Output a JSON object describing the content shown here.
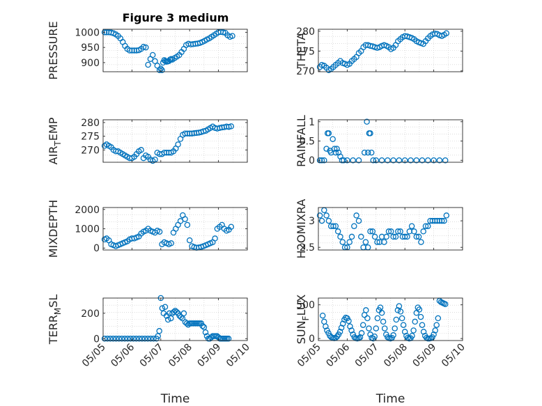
{
  "figure_title": "Figure 3 medium",
  "colors": {
    "marker": "#0072bd",
    "axis": "#262626",
    "grid": "#c8c8c8"
  },
  "chart_data": [
    {
      "id": "pressure",
      "type": "scatter",
      "ylabel": "PRESSURE",
      "xlabel": "",
      "xlim": [
        0,
        5
      ],
      "ylim": [
        870,
        1010
      ],
      "yticks": [
        900,
        950,
        1000
      ],
      "xticks": [],
      "grid": true,
      "x": [
        0.05,
        0.12,
        0.2,
        0.28,
        0.36,
        0.44,
        0.52,
        0.6,
        0.68,
        0.76,
        0.84,
        0.92,
        1.0,
        1.08,
        1.16,
        1.24,
        1.32,
        1.4,
        1.48,
        1.56,
        1.64,
        1.72,
        1.8,
        1.88,
        1.96,
        2.0,
        2.04,
        2.08,
        2.12,
        2.16,
        2.2,
        2.24,
        2.28,
        2.32,
        2.36,
        2.4,
        2.48,
        2.56,
        2.64,
        2.72,
        2.8,
        2.88,
        2.96,
        3.04,
        3.12,
        3.2,
        3.28,
        3.36,
        3.44,
        3.52,
        3.6,
        3.68,
        3.76,
        3.84,
        3.92,
        4.0,
        4.08,
        4.16,
        4.24,
        4.32,
        4.4,
        4.48
      ],
      "y": [
        1000,
        1000,
        1000,
        999,
        997,
        993,
        988,
        980,
        968,
        955,
        945,
        940,
        940,
        940,
        940,
        941,
        945,
        952,
        950,
        893,
        912,
        925,
        905,
        890,
        875,
        880,
        875,
        900,
        908,
        905,
        903,
        904,
        905,
        910,
        912,
        910,
        915,
        920,
        925,
        935,
        945,
        958,
        962,
        960,
        961,
        962,
        963,
        965,
        968,
        972,
        976,
        980,
        985,
        990,
        995,
        1000,
        1001,
        1000,
        998,
        990,
        985,
        988
      ]
    },
    {
      "id": "theta",
      "type": "scatter",
      "ylabel": "THETA",
      "xlabel": "",
      "xlim": [
        0,
        5
      ],
      "ylim": [
        269.8,
        280.5
      ],
      "yticks": [
        270,
        275,
        280
      ],
      "xticks": [],
      "grid": true,
      "x": [
        0.05,
        0.12,
        0.2,
        0.28,
        0.36,
        0.44,
        0.52,
        0.6,
        0.68,
        0.76,
        0.84,
        0.92,
        1.0,
        1.08,
        1.16,
        1.24,
        1.32,
        1.4,
        1.48,
        1.56,
        1.64,
        1.72,
        1.8,
        1.88,
        1.96,
        2.04,
        2.12,
        2.2,
        2.28,
        2.36,
        2.44,
        2.52,
        2.6,
        2.68,
        2.76,
        2.84,
        2.92,
        3.0,
        3.08,
        3.16,
        3.24,
        3.32,
        3.4,
        3.48,
        3.56,
        3.64,
        3.72,
        3.8,
        3.88,
        3.96,
        4.04,
        4.12,
        4.2,
        4.28,
        4.36,
        4.44
      ],
      "y": [
        271,
        271.5,
        271.3,
        270.8,
        270.2,
        270.5,
        271,
        271.5,
        272,
        272.5,
        272,
        271.8,
        271.5,
        271.8,
        272.5,
        273,
        273.5,
        274.5,
        275,
        276,
        276.5,
        276.5,
        276.3,
        276.2,
        276,
        275.8,
        276,
        276.3,
        276.5,
        276.3,
        276,
        275.5,
        275.8,
        276.5,
        277.5,
        278,
        278.5,
        278.8,
        278.7,
        278.5,
        278.3,
        278,
        277.5,
        277.2,
        277,
        276.8,
        277.5,
        278.2,
        278.8,
        279.2,
        279.4,
        279.3,
        279.0,
        278.8,
        279.1,
        279.5
      ]
    },
    {
      "id": "air_temp",
      "type": "scatter",
      "ylabel": "AIR_TEMP",
      "xlabel": "",
      "xlim": [
        0,
        5
      ],
      "ylim": [
        265.5,
        281
      ],
      "yticks": [
        270,
        275,
        280
      ],
      "xticks": [],
      "grid": true,
      "x": [
        0.05,
        0.12,
        0.2,
        0.28,
        0.36,
        0.44,
        0.52,
        0.6,
        0.68,
        0.76,
        0.84,
        0.92,
        1.0,
        1.08,
        1.16,
        1.24,
        1.32,
        1.4,
        1.48,
        1.56,
        1.64,
        1.72,
        1.8,
        1.88,
        1.96,
        2.04,
        2.12,
        2.2,
        2.28,
        2.36,
        2.44,
        2.52,
        2.6,
        2.68,
        2.76,
        2.84,
        2.92,
        3.0,
        3.08,
        3.16,
        3.24,
        3.32,
        3.4,
        3.48,
        3.56,
        3.64,
        3.72,
        3.8,
        3.88,
        3.96,
        4.04,
        4.12,
        4.2,
        4.28,
        4.36,
        4.44
      ],
      "y": [
        271.5,
        272,
        271.5,
        271,
        270,
        269.5,
        269.5,
        269,
        268.5,
        268,
        267.5,
        267,
        267,
        267.5,
        268.5,
        269.5,
        270,
        267,
        268,
        267.5,
        266.5,
        266,
        266.5,
        269,
        268.5,
        268.5,
        269,
        269,
        269,
        269,
        269.5,
        270.5,
        272,
        274,
        275.5,
        276,
        276,
        276,
        276,
        276.1,
        276.2,
        276.3,
        276.5,
        276.8,
        277,
        277.5,
        278,
        278.5,
        278,
        277.8,
        278,
        278.2,
        278.3,
        278.5,
        278.4,
        278.6
      ]
    },
    {
      "id": "rainfall",
      "type": "scatter",
      "ylabel": "RAINFALL",
      "xlabel": "",
      "xlim": [
        0,
        5
      ],
      "ylim": [
        -0.05,
        1.05
      ],
      "yticks": [
        0,
        0.5,
        1
      ],
      "xticks": [],
      "grid": true,
      "x": [
        0.05,
        0.12,
        0.2,
        0.28,
        0.32,
        0.36,
        0.4,
        0.44,
        0.5,
        0.56,
        0.6,
        0.64,
        0.7,
        0.76,
        0.82,
        0.88,
        1.0,
        1.2,
        1.4,
        1.6,
        1.68,
        1.72,
        1.76,
        1.8,
        1.84,
        1.9,
        2.0,
        2.2,
        2.4,
        2.6,
        2.8,
        3.0,
        3.2,
        3.4,
        3.6,
        3.8,
        4.0,
        4.2,
        4.4
      ],
      "y": [
        0,
        0,
        0,
        0.3,
        0.7,
        0.7,
        0.25,
        0.2,
        0.55,
        0.3,
        0.2,
        0.3,
        0.2,
        0.1,
        0,
        0,
        0,
        0,
        0,
        0.2,
        1.0,
        0.2,
        0.7,
        0.7,
        0.2,
        0,
        0,
        0,
        0,
        0,
        0,
        0,
        0,
        0,
        0,
        0,
        0,
        0,
        0
      ]
    },
    {
      "id": "mixdepth",
      "type": "scatter",
      "ylabel": "MIXDEPTH",
      "xlabel": "",
      "xlim": [
        0,
        5
      ],
      "ylim": [
        -100,
        2100
      ],
      "yticks": [
        0,
        1000,
        2000
      ],
      "xticks": [],
      "grid": true,
      "x": [
        0.05,
        0.12,
        0.2,
        0.28,
        0.36,
        0.44,
        0.52,
        0.6,
        0.68,
        0.76,
        0.84,
        0.92,
        1.0,
        1.08,
        1.16,
        1.24,
        1.32,
        1.4,
        1.48,
        1.56,
        1.64,
        1.72,
        1.8,
        1.88,
        1.96,
        2.04,
        2.12,
        2.2,
        2.28,
        2.36,
        2.44,
        2.52,
        2.6,
        2.68,
        2.76,
        2.84,
        2.92,
        3.0,
        3.08,
        3.16,
        3.24,
        3.32,
        3.4,
        3.48,
        3.56,
        3.64,
        3.72,
        3.8,
        3.88,
        3.96,
        4.04,
        4.12,
        4.2,
        4.28,
        4.36,
        4.44
      ],
      "y": [
        450,
        500,
        400,
        200,
        150,
        100,
        150,
        200,
        250,
        300,
        350,
        450,
        500,
        500,
        550,
        600,
        750,
        850,
        900,
        1000,
        900,
        850,
        800,
        900,
        850,
        200,
        300,
        250,
        200,
        250,
        800,
        1000,
        1200,
        1400,
        1700,
        1500,
        1200,
        400,
        100,
        50,
        20,
        30,
        60,
        100,
        150,
        200,
        250,
        300,
        500,
        1000,
        1100,
        1200,
        1000,
        900,
        950,
        1100
      ]
    },
    {
      "id": "h2omixra",
      "type": "scatter",
      "ylabel": "H2OMIXRA",
      "xlabel": "",
      "xlim": [
        0,
        5
      ],
      "ylim": [
        2.45,
        3.25
      ],
      "yticks": [
        2.5,
        3
      ],
      "xticks": [],
      "grid": true,
      "x": [
        0.05,
        0.12,
        0.2,
        0.28,
        0.36,
        0.44,
        0.52,
        0.6,
        0.68,
        0.76,
        0.84,
        0.92,
        1.0,
        1.08,
        1.16,
        1.24,
        1.32,
        1.4,
        1.48,
        1.56,
        1.64,
        1.72,
        1.8,
        1.88,
        1.96,
        2.04,
        2.12,
        2.2,
        2.28,
        2.36,
        2.44,
        2.52,
        2.6,
        2.68,
        2.76,
        2.84,
        2.92,
        3.0,
        3.08,
        3.16,
        3.24,
        3.32,
        3.4,
        3.48,
        3.56,
        3.64,
        3.72,
        3.8,
        3.88,
        3.96,
        4.04,
        4.12,
        4.2,
        4.28,
        4.36,
        4.44
      ],
      "y": [
        3.1,
        3.0,
        3.2,
        3.1,
        3.0,
        2.9,
        2.9,
        2.9,
        2.8,
        2.7,
        2.6,
        2.5,
        2.5,
        2.6,
        2.7,
        2.9,
        3.1,
        3.0,
        2.7,
        2.5,
        2.6,
        2.5,
        2.8,
        2.8,
        2.7,
        2.6,
        2.6,
        2.7,
        2.6,
        2.7,
        2.8,
        2.8,
        2.7,
        2.7,
        2.8,
        2.8,
        2.7,
        2.7,
        2.7,
        2.8,
        2.9,
        2.8,
        2.7,
        2.7,
        2.6,
        2.8,
        2.9,
        2.9,
        3.0,
        3.0,
        3.0,
        3.0,
        3.0,
        3.0,
        3.0,
        3.1
      ]
    },
    {
      "id": "terr_msl",
      "type": "scatter",
      "ylabel": "TERR_MSL",
      "xlabel": "Time",
      "xlim": [
        0,
        5
      ],
      "ylim": [
        -15,
        320
      ],
      "yticks": [
        0,
        200
      ],
      "xticks": [
        0,
        1,
        2,
        3,
        4,
        5
      ],
      "xticklabels": [
        "05/05",
        "05/06",
        "05/07",
        "05/08",
        "05/09",
        "05/10"
      ],
      "grid": true,
      "x": [
        0.05,
        0.15,
        0.25,
        0.35,
        0.45,
        0.55,
        0.65,
        0.75,
        0.85,
        0.95,
        1.05,
        1.15,
        1.25,
        1.35,
        1.45,
        1.55,
        1.65,
        1.75,
        1.85,
        1.9,
        1.95,
        2.0,
        2.05,
        2.1,
        2.15,
        2.2,
        2.25,
        2.3,
        2.35,
        2.4,
        2.45,
        2.5,
        2.55,
        2.6,
        2.65,
        2.7,
        2.75,
        2.8,
        2.85,
        2.9,
        2.95,
        3.0,
        3.05,
        3.1,
        3.15,
        3.2,
        3.25,
        3.3,
        3.35,
        3.4,
        3.45,
        3.5,
        3.55,
        3.6,
        3.65,
        3.7,
        3.75,
        3.8,
        3.85,
        3.9,
        3.95,
        4.0,
        4.05,
        4.1,
        4.15,
        4.2,
        4.25,
        4.3,
        4.35
      ],
      "y": [
        0,
        0,
        0,
        0,
        0,
        0,
        0,
        0,
        0,
        0,
        0,
        0,
        0,
        0,
        0,
        0,
        0,
        0,
        0,
        20,
        60,
        320,
        240,
        200,
        250,
        180,
        150,
        200,
        160,
        200,
        210,
        220,
        210,
        200,
        180,
        170,
        160,
        200,
        130,
        120,
        110,
        120,
        120,
        120,
        120,
        120,
        120,
        120,
        120,
        120,
        100,
        90,
        50,
        20,
        0,
        0,
        10,
        20,
        20,
        20,
        20,
        10,
        0,
        0,
        0,
        0,
        0,
        0,
        0
      ]
    },
    {
      "id": "sun_flux",
      "type": "scatter",
      "ylabel": "SUN_FLUX",
      "xlabel": "Time",
      "xlim": [
        0,
        5
      ],
      "ylim": [
        -30,
        600
      ],
      "yticks": [
        0,
        500
      ],
      "xticks": [
        0,
        1,
        2,
        3,
        4,
        5
      ],
      "xticklabels": [
        "05/05",
        "05/06",
        "05/07",
        "05/08",
        "05/09",
        "05/10"
      ],
      "grid": true,
      "x": [
        0.15,
        0.2,
        0.25,
        0.3,
        0.35,
        0.4,
        0.45,
        0.5,
        0.55,
        0.6,
        0.65,
        0.7,
        0.75,
        0.8,
        0.85,
        0.9,
        0.95,
        1.0,
        1.05,
        1.1,
        1.15,
        1.2,
        1.25,
        1.3,
        1.35,
        1.4,
        1.45,
        1.5,
        1.55,
        1.6,
        1.65,
        1.7,
        1.75,
        1.8,
        1.85,
        1.9,
        1.95,
        2.0,
        2.05,
        2.1,
        2.15,
        2.2,
        2.25,
        2.3,
        2.35,
        2.4,
        2.45,
        2.5,
        2.55,
        2.6,
        2.65,
        2.7,
        2.75,
        2.8,
        2.85,
        2.9,
        2.95,
        3.0,
        3.05,
        3.1,
        3.15,
        3.2,
        3.25,
        3.3,
        3.35,
        3.4,
        3.45,
        3.5,
        3.55,
        3.6,
        3.65,
        3.7,
        3.75,
        3.8,
        3.85,
        3.9,
        3.95,
        4.0,
        4.05,
        4.1,
        4.15,
        4.2,
        4.25,
        4.3,
        4.35,
        4.4
      ],
      "y": [
        340,
        250,
        180,
        120,
        80,
        40,
        20,
        10,
        5,
        10,
        30,
        60,
        100,
        160,
        220,
        280,
        310,
        300,
        260,
        180,
        120,
        60,
        20,
        5,
        0,
        5,
        20,
        80,
        200,
        350,
        420,
        300,
        150,
        60,
        10,
        0,
        30,
        150,
        300,
        420,
        460,
        380,
        250,
        150,
        60,
        20,
        5,
        0,
        10,
        50,
        150,
        280,
        420,
        480,
        400,
        300,
        200,
        100,
        40,
        10,
        0,
        5,
        40,
        120,
        250,
        380,
        460,
        430,
        320,
        200,
        100,
        40,
        10,
        0,
        0,
        5,
        20,
        60,
        120,
        200,
        300,
        560,
        540,
        530,
        520,
        510
      ]
    }
  ]
}
